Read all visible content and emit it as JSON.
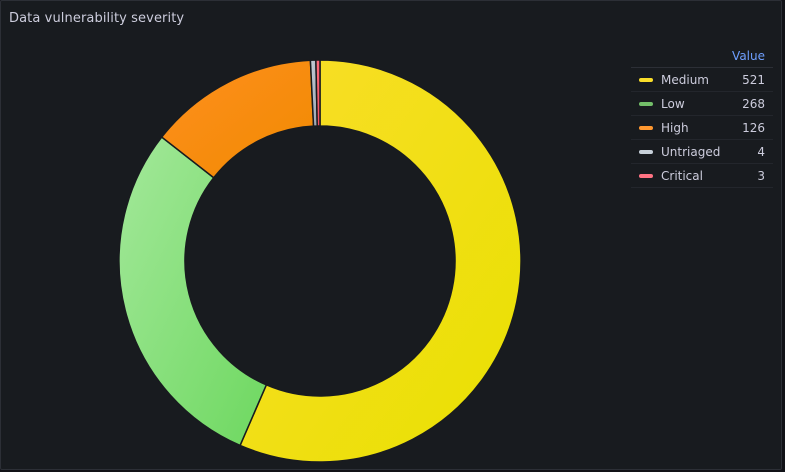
{
  "panel": {
    "title": "Data vulnerability severity"
  },
  "legend": {
    "value_header": "Value"
  },
  "chart_data": {
    "type": "pie",
    "donut": true,
    "legend_placement": "right",
    "slices": [
      {
        "label": "Medium",
        "value": 521,
        "color": "#fade2a",
        "gradient": [
          "#fade2a",
          "#e8e000"
        ]
      },
      {
        "label": "Low",
        "value": 268,
        "color": "#73bf69",
        "gradient": [
          "#a3e89a",
          "#6ed860"
        ]
      },
      {
        "label": "High",
        "value": 126,
        "color": "#ff9830",
        "gradient": [
          "#ff8f1f",
          "#f08a00"
        ]
      },
      {
        "label": "Untriaged",
        "value": 4,
        "color": "#c7d0d9",
        "gradient": [
          "#c7d0d9",
          "#9aa4b0"
        ]
      },
      {
        "label": "Critical",
        "value": 3,
        "color": "#ff7383",
        "gradient": [
          "#ff7383",
          "#f2495c"
        ]
      }
    ]
  }
}
